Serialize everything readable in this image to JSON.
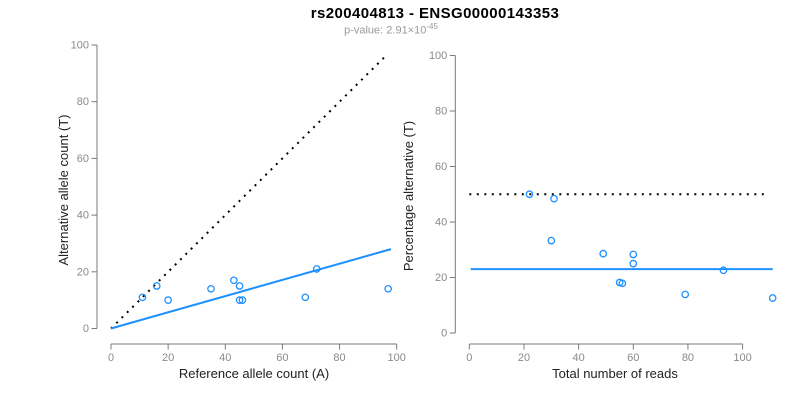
{
  "header": {
    "title": "rs200404813 - ENSG00000143353",
    "subtitle_prefix": "p-value: 2.91×10",
    "subtitle_exponent": "-45"
  },
  "colors": {
    "accent_blue": "#1E90FF",
    "dotted_line_black": "#000000",
    "axis_line_gray": "#7a7a7a",
    "tick_label_gray": "#8a8a8a",
    "axis_title_dark": "#222222",
    "subtitle_gray": "#9a9a9a",
    "background": "#ffffff"
  },
  "chart_data": [
    {
      "id": "counts-panel",
      "type": "scatter",
      "title": "",
      "xlabel": "Reference allele count (A)",
      "ylabel": "Alternative allele count (T)",
      "xlim": [
        0,
        100
      ],
      "ylim": [
        0,
        100
      ],
      "xticks": [
        0,
        20,
        40,
        60,
        80,
        100
      ],
      "yticks": [
        0,
        20,
        40,
        60,
        80,
        100
      ],
      "grid": false,
      "legend": null,
      "marker": "open-circle",
      "points": [
        [
          11,
          11
        ],
        [
          16,
          15
        ],
        [
          20,
          10
        ],
        [
          35,
          14
        ],
        [
          43,
          17
        ],
        [
          45,
          15
        ],
        [
          45,
          10
        ],
        [
          46,
          10
        ],
        [
          68,
          11
        ],
        [
          72,
          21
        ],
        [
          97,
          14
        ]
      ],
      "lines": [
        {
          "name": "identity-line",
          "style": "dotted",
          "color": "#000000",
          "from": [
            0,
            0
          ],
          "to": [
            96,
            96
          ]
        },
        {
          "name": "fit-line",
          "style": "solid",
          "color": "#1E90FF",
          "from": [
            0,
            0
          ],
          "to": [
            98,
            28
          ]
        }
      ]
    },
    {
      "id": "percentage-panel",
      "type": "scatter",
      "title": "",
      "xlabel": "Total number of reads",
      "ylabel": "Percentage alternative (T)",
      "xlim": [
        0,
        111
      ],
      "ylim": [
        0,
        100
      ],
      "xticks": [
        0,
        20,
        40,
        60,
        80,
        100
      ],
      "yticks": [
        0,
        20,
        40,
        60,
        80,
        100
      ],
      "grid": false,
      "legend": null,
      "marker": "open-circle",
      "points": [
        [
          22,
          50
        ],
        [
          31,
          48.4
        ],
        [
          30,
          33.3
        ],
        [
          49,
          28.6
        ],
        [
          60,
          28.3
        ],
        [
          60,
          25
        ],
        [
          55,
          18.2
        ],
        [
          56,
          17.9
        ],
        [
          79,
          13.9
        ],
        [
          93,
          22.6
        ],
        [
          111,
          12.6
        ]
      ],
      "lines": [
        {
          "name": "reference-line-50pct",
          "style": "dotted",
          "color": "#000000",
          "from": [
            0,
            50
          ],
          "to": [
            108,
            50
          ]
        },
        {
          "name": "fit-line",
          "style": "solid",
          "color": "#1E90FF",
          "from": [
            0.5,
            23
          ],
          "to": [
            111,
            23
          ]
        }
      ]
    }
  ]
}
